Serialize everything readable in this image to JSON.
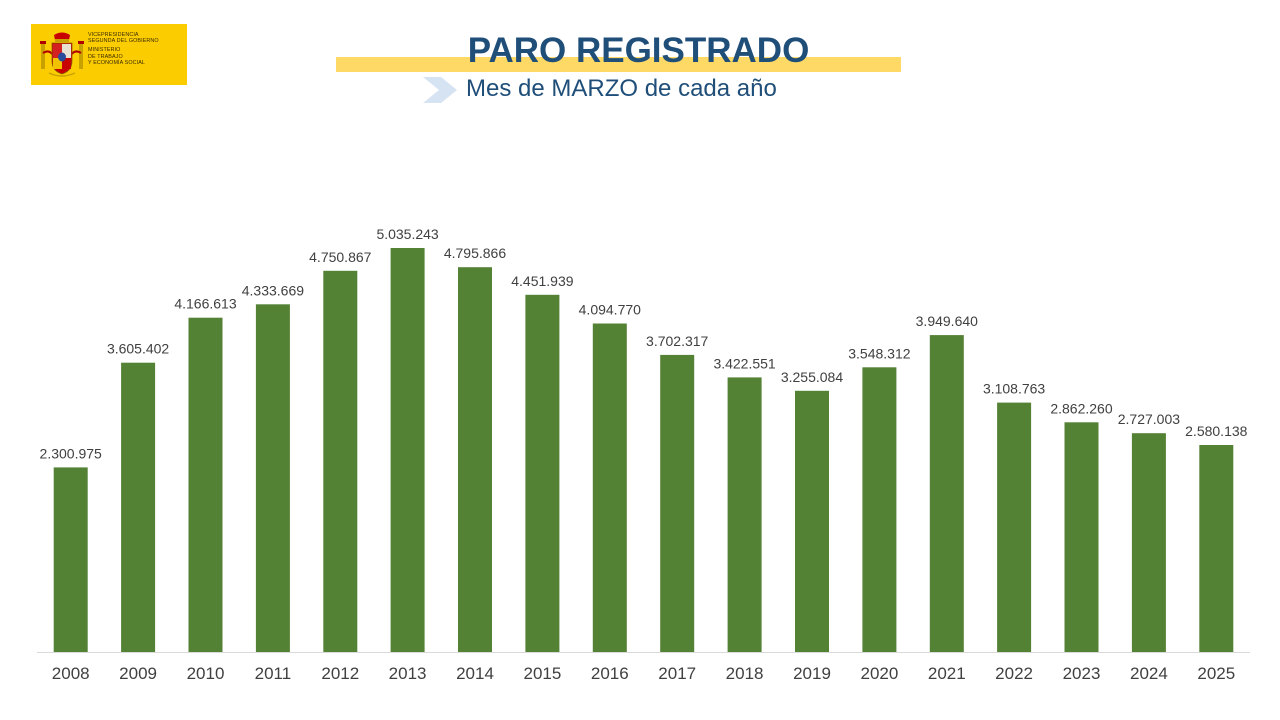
{
  "header": {
    "logo_lines": [
      "VICEPRESIDENCIA",
      "SEGUNDA DEL GOBIERNO",
      "MINISTERIO",
      "DE TRABAJO",
      "Y ECONOMÍA SOCIAL"
    ],
    "title": "PARO REGISTRADO",
    "subtitle": "Mes de MARZO de cada año"
  },
  "colors": {
    "bar": "#548235",
    "title": "#1f4e79",
    "title_band": "#fed966",
    "logo_bg": "#fbcd00",
    "label": "#404040",
    "axis_text": "#404040"
  },
  "chart_data": {
    "type": "bar",
    "title": "PARO REGISTRADO",
    "subtitle": "Mes de MARZO de cada año",
    "categories": [
      "2008",
      "2009",
      "2010",
      "2011",
      "2012",
      "2013",
      "2014",
      "2015",
      "2016",
      "2017",
      "2018",
      "2019",
      "2020",
      "2021",
      "2022",
      "2023",
      "2024",
      "2025"
    ],
    "values": [
      2300975,
      3605402,
      4166613,
      4333669,
      4750867,
      5035243,
      4795866,
      4451939,
      4094770,
      3702317,
      3422551,
      3255084,
      3548312,
      3949640,
      3108763,
      2862260,
      2727003,
      2580138
    ],
    "value_labels": [
      "2.300.975",
      "3.605.402",
      "4.166.613",
      "4.333.669",
      "4.750.867",
      "5.035.243",
      "4.795.866",
      "4.451.939",
      "4.094.770",
      "3.702.317",
      "3.422.551",
      "3.255.084",
      "3.548.312",
      "3.949.640",
      "3.108.763",
      "2.862.260",
      "2.727.003",
      "2.580.138"
    ],
    "xlabel": "",
    "ylabel": "",
    "ylim": [
      0,
      5035243
    ],
    "grid": false,
    "legend": "none"
  }
}
